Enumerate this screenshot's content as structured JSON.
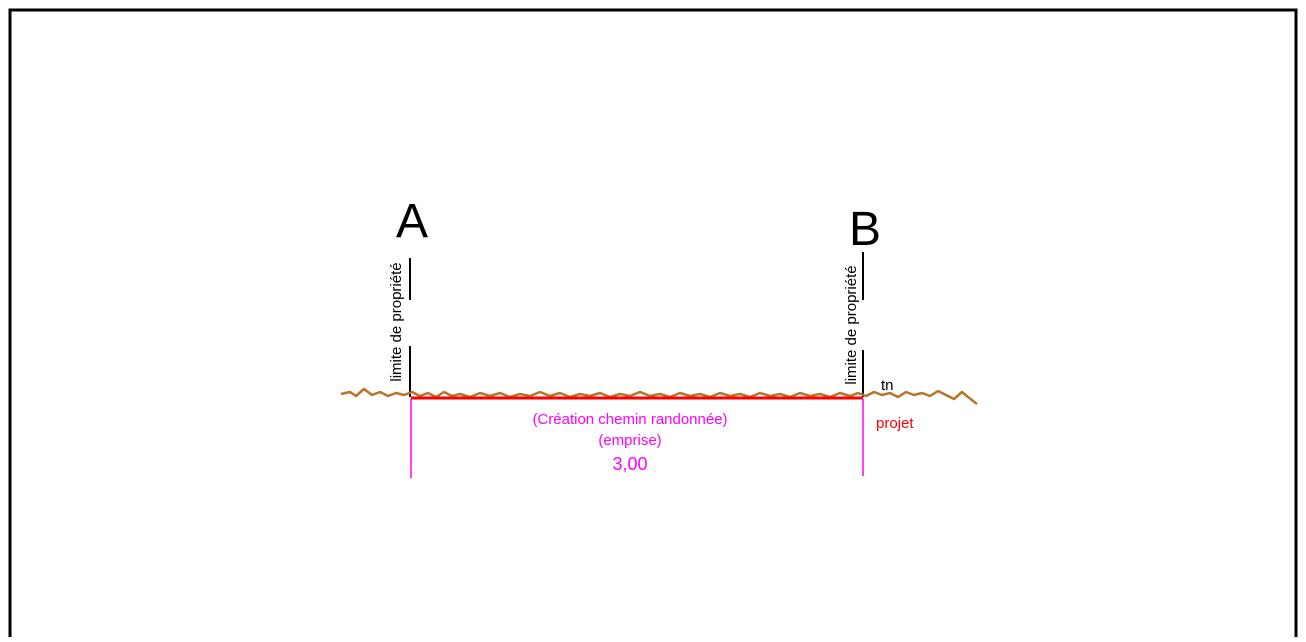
{
  "labels": {
    "point_a": "A",
    "point_b": "B",
    "property_limit_a": "limite de propriété",
    "property_limit_b": "limite de propriété",
    "terrain": "tn",
    "project": "projet",
    "creation": "(Création chemin randonnée)",
    "emprise": "(emprise)",
    "width_value": "3,00"
  },
  "colors": {
    "frame": "#000000",
    "terrain_line": "#b8732a",
    "project_line": "#ff0000",
    "dimension": "#ff00ff",
    "text_black": "#000000"
  }
}
